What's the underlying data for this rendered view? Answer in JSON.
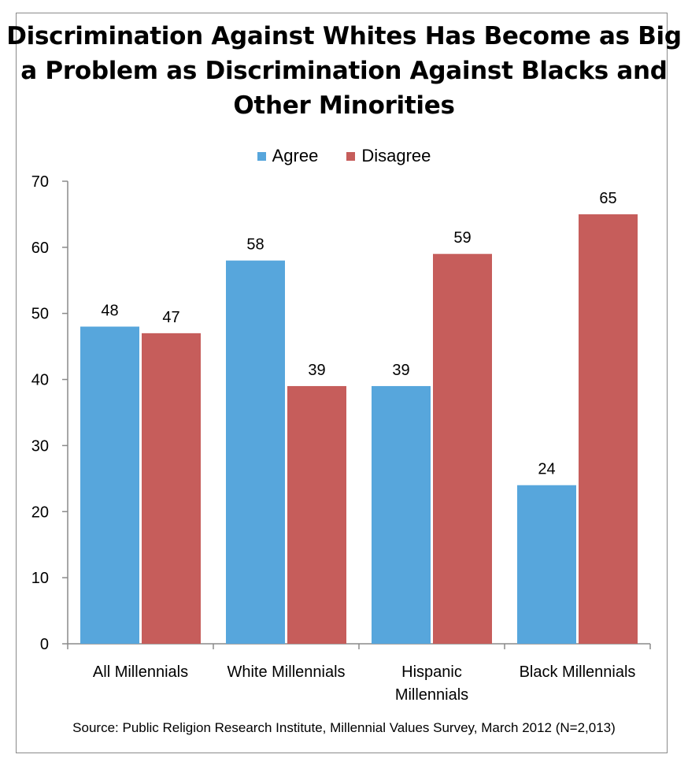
{
  "chart_data": {
    "type": "bar",
    "title_lines": [
      "Discrimination Against Whites Has Become as Big",
      "a Problem as Discrimination Against Blacks and",
      "Other Minorities"
    ],
    "categories": [
      [
        "All Millennials"
      ],
      [
        "White Millennials"
      ],
      [
        "Hispanic",
        "Millennials"
      ],
      [
        "Black Millennials"
      ]
    ],
    "series": [
      {
        "name": "Agree",
        "color": "#57a6dc",
        "values": [
          48,
          58,
          39,
          24
        ]
      },
      {
        "name": "Disagree",
        "color": "#c65d5b",
        "values": [
          47,
          39,
          59,
          65
        ]
      }
    ],
    "ylim": [
      0,
      70
    ],
    "yticks": [
      0,
      10,
      20,
      30,
      40,
      50,
      60,
      70
    ],
    "legend_position": "top-center",
    "grid": false,
    "source": "Source: Public Religion Research Institute, Millennial Values Survey, March 2012 (N=2,013)"
  }
}
